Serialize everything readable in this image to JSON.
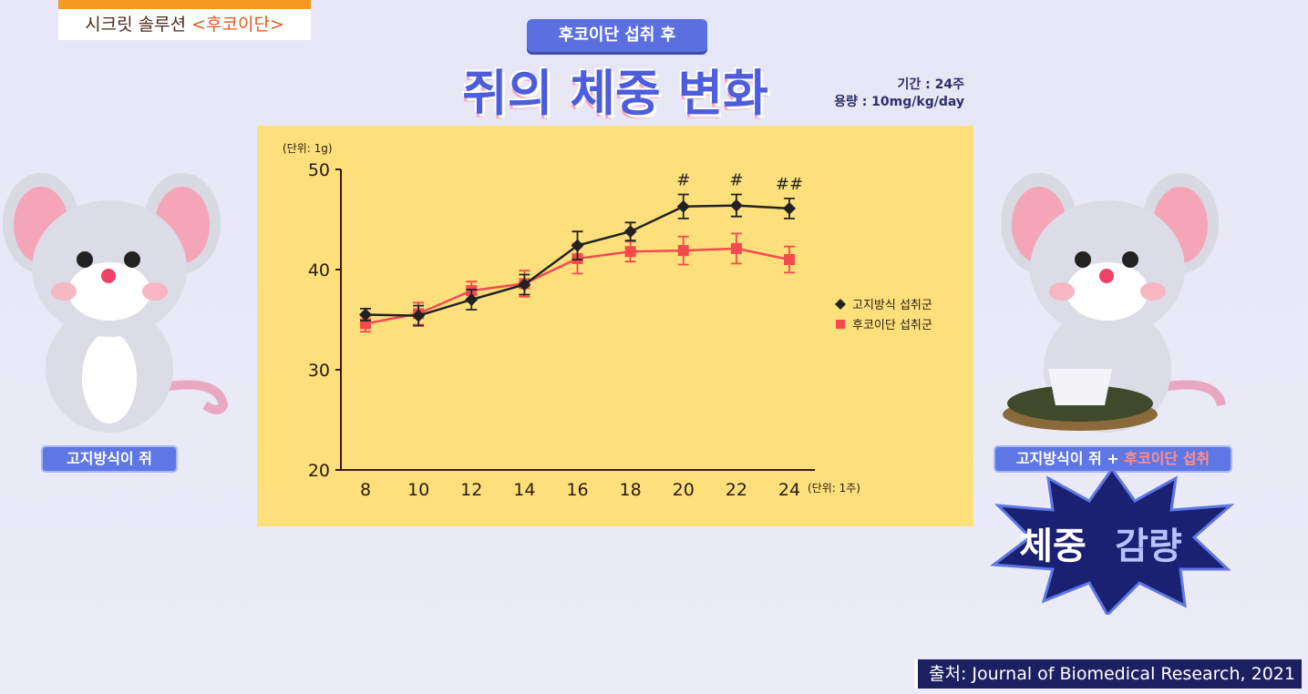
{
  "banner": {
    "subtitle_prefix": "시크릿 솔루션 ",
    "subtitle_highlight": "<후코이단>"
  },
  "header": {
    "pill": "후코이단 섭취 후",
    "title": "쥐의 체중 변화",
    "period": "기간 : 24주",
    "dose": "용량 : 10mg/kg/day"
  },
  "left_label": "고지방식이 쥐",
  "right_label": {
    "prefix": "고지방식이 쥐 + ",
    "highlight": "후코이단 섭취"
  },
  "burst": {
    "word1": "체중",
    "word2": "감량"
  },
  "source": "출처: Journal of Biomedical Research, 2021",
  "colors": {
    "background": "#e8e8f7",
    "chart_bg": "#fde07c",
    "series_black": "#222222",
    "series_red": "#f44a4f",
    "accent": "#5b6fe0",
    "burst": "#1b2172"
  },
  "chart_data": {
    "type": "line",
    "ylabel": "(단위: 1g)",
    "xlabel": "(단위: 1주)",
    "x": [
      8,
      10,
      12,
      14,
      16,
      18,
      20,
      22,
      24
    ],
    "xticks": [
      "8",
      "10",
      "12",
      "14",
      "16",
      "18",
      "20",
      "22",
      "24"
    ],
    "yticks": [
      "20",
      "30",
      "40",
      "50"
    ],
    "ylim": [
      20,
      50
    ],
    "legend_position": "right",
    "grid": false,
    "series": [
      {
        "name": "고지방식 섭취군",
        "marker": "diamond",
        "color": "#222222",
        "values": [
          35.5,
          35.4,
          37.0,
          38.5,
          42.4,
          43.8,
          46.3,
          46.4,
          46.1
        ],
        "errors": [
          0.6,
          1.0,
          1.0,
          1.0,
          1.4,
          0.9,
          1.2,
          1.1,
          1.0
        ]
      },
      {
        "name": "후코이단 섭취군",
        "marker": "square",
        "color": "#f44a4f",
        "values": [
          34.6,
          35.6,
          37.9,
          38.6,
          41.1,
          41.8,
          41.9,
          42.1,
          41.0
        ],
        "errors": [
          0.8,
          1.1,
          0.9,
          1.3,
          1.5,
          1.0,
          1.4,
          1.5,
          1.3
        ]
      }
    ],
    "annotations": [
      {
        "x": 20,
        "text": "#"
      },
      {
        "x": 22,
        "text": "#"
      },
      {
        "x": 24,
        "text": "##"
      }
    ]
  }
}
